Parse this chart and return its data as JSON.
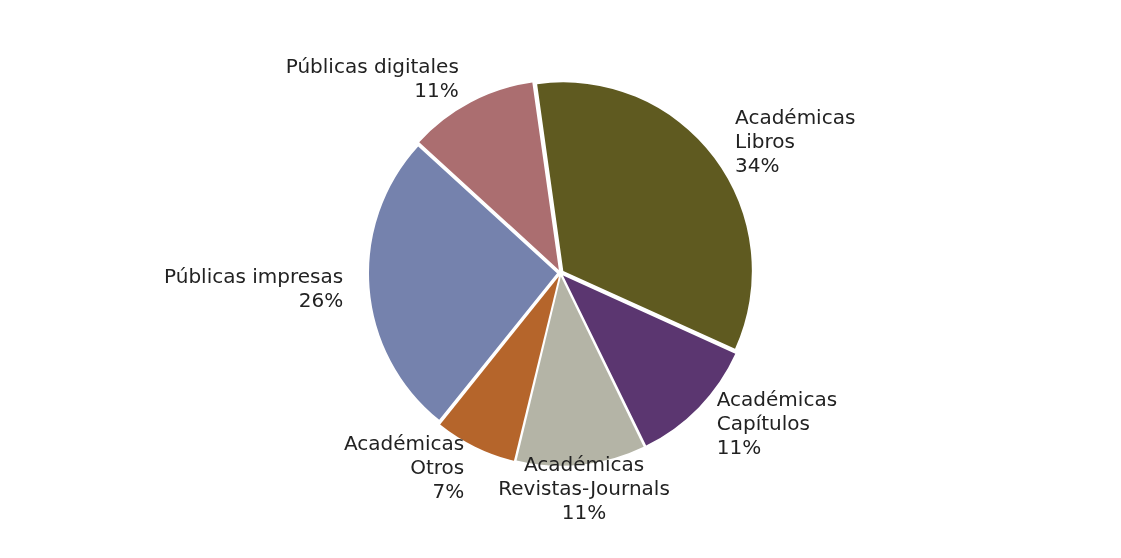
{
  "chart_data": {
    "type": "pie",
    "categories": [
      "Académicas\nLibros",
      "Académicas\nCapítulos",
      "Académicas\nRevistas-Journals",
      "Académicas\nOtros",
      "Públicas impresas",
      "Públicas digitales"
    ],
    "values": [
      34,
      11,
      11,
      7,
      26,
      11
    ],
    "value_labels": [
      "34%",
      "11%",
      "11%",
      "7%",
      "26%",
      "11%"
    ],
    "colors": [
      "#5f5a20",
      "#5b3670",
      "#b4b4a6",
      "#b5652b",
      "#7582ad",
      "#ab6e70"
    ],
    "legend": false
  }
}
